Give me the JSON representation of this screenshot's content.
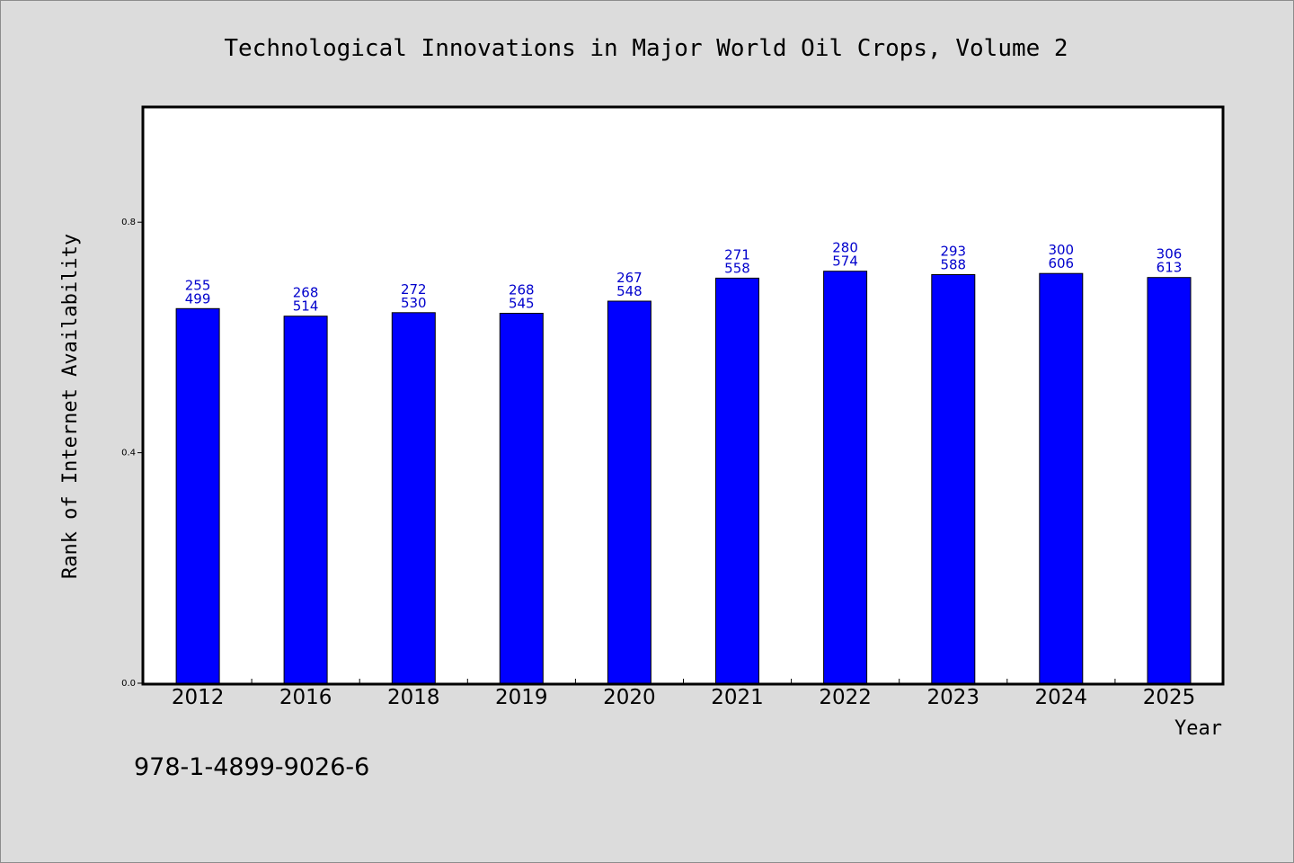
{
  "chart_data": {
    "type": "bar",
    "title": "Technological Innovations in Major World Oil Crops, Volume 2",
    "xlabel": "Year",
    "ylabel": "Rank of Internet Availability",
    "categories": [
      "2012",
      "2016",
      "2018",
      "2019",
      "2020",
      "2021",
      "2022",
      "2023",
      "2024",
      "2025"
    ],
    "series": [
      {
        "values": [
          0.65,
          0.637,
          0.643,
          0.642,
          0.663,
          0.703,
          0.715,
          0.709,
          0.711,
          0.704
        ],
        "color": "#0000ff"
      }
    ],
    "label_top": [
      "255",
      "268",
      "272",
      "268",
      "267",
      "271",
      "280",
      "293",
      "300",
      "306"
    ],
    "label_bottom": [
      "499",
      "514",
      "530",
      "545",
      "548",
      "558",
      "574",
      "588",
      "606",
      "613"
    ],
    "ylim": [
      0,
      1.0
    ],
    "yticks": [
      0.0,
      0.4,
      0.8
    ],
    "ytick_labels": [
      "0.0",
      "0.4",
      "0.8"
    ],
    "grid": false,
    "legend": "none"
  },
  "footer": {
    "isbn": "978-1-4899-9026-6"
  },
  "colors": {
    "background": "#dcdcdc",
    "plot_background": "#ffffff",
    "bar": "#0000ff",
    "data_label": "#0000cc"
  }
}
